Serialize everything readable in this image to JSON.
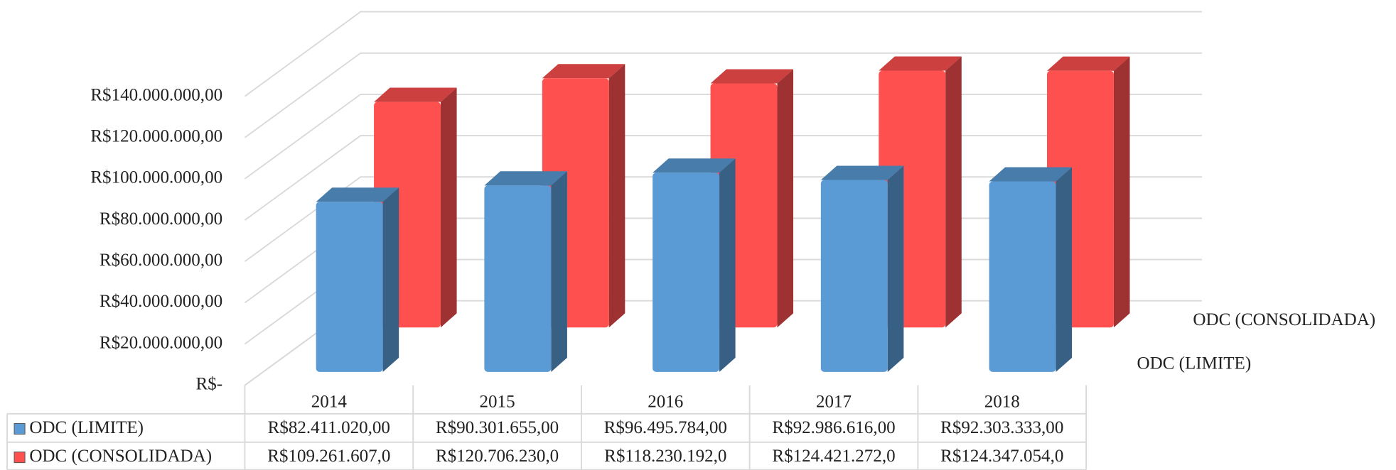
{
  "chart_data": {
    "type": "bar3d",
    "categories": [
      "2014",
      "2015",
      "2016",
      "2017",
      "2018"
    ],
    "series": [
      {
        "name": "ODC (LIMITE)",
        "color": "#5b9bd5",
        "values": [
          82411020,
          90301655,
          96495784,
          92986616,
          92303333
        ],
        "value_labels": [
          "R$82.411.020,00",
          "R$90.301.655,00",
          "R$96.495.784,00",
          "R$92.986.616,00",
          "R$92.303.333,00"
        ]
      },
      {
        "name": "ODC (CONSOLIDADA)",
        "color": "#ff5050",
        "values": [
          109261607,
          120706230,
          118230192,
          124421272,
          124347054
        ],
        "value_labels": [
          "R$109.261.607,0",
          "R$120.706.230,0",
          "R$118.230.192,0",
          "R$124.421.272,0",
          "R$124.347.054,0"
        ]
      }
    ],
    "ylim": [
      0,
      140000000
    ],
    "yticks": [
      {
        "value": 0,
        "label": "R$-"
      },
      {
        "value": 20000000,
        "label": "R$20.000.000,00"
      },
      {
        "value": 40000000,
        "label": "R$40.000.000,00"
      },
      {
        "value": 60000000,
        "label": "R$60.000.000,00"
      },
      {
        "value": 80000000,
        "label": "R$80.000.000,00"
      },
      {
        "value": 100000000,
        "label": "R$100.000.000,00"
      },
      {
        "value": 120000000,
        "label": "R$120.000.000,00"
      },
      {
        "value": 140000000,
        "label": "R$140.000.000,00"
      }
    ],
    "grid": true
  }
}
